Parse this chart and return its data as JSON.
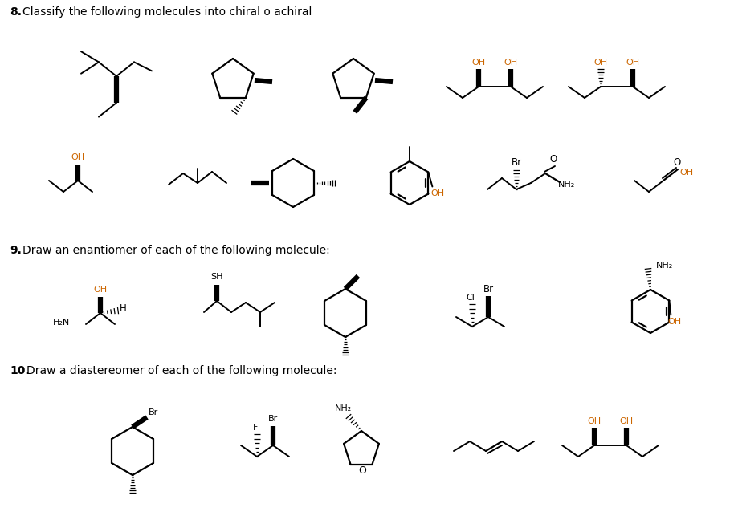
{
  "bg_color": "#ffffff",
  "text_color": "#000000",
  "ohc": "#cc6600",
  "title8": "8.  Classify the following molecules into chiral o achiral",
  "title9": "9.  Draw an enantiomer of each of the following molecule:",
  "title10": "10.  Draw a diastereomer of each of the following molecule:"
}
